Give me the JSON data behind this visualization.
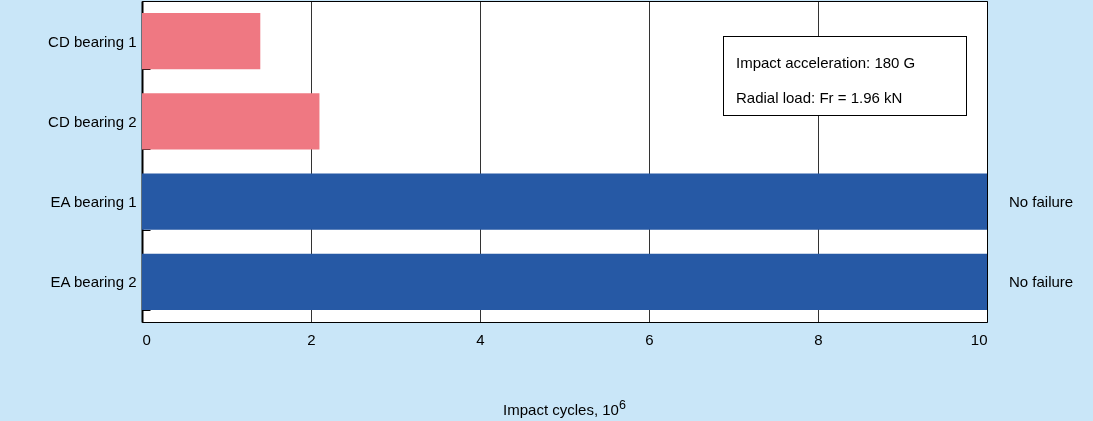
{
  "chart_data": {
    "type": "bar",
    "orientation": "horizontal",
    "xlabel": "Impact cycles, 10$^{6}$",
    "categories": [
      "CD bearing 1",
      "CD bearing 2",
      "EA bearing 1",
      "EA bearing 2"
    ],
    "values": [
      1.4,
      2.1,
      10,
      10
    ],
    "colors": [
      "#ef7882",
      "#ef7882",
      "#2659a5",
      "#2659a5"
    ],
    "value_labels": [
      null,
      null,
      "No failure",
      "No failure"
    ],
    "xlim": [
      0,
      10
    ],
    "xticks": [
      0,
      2,
      4,
      6,
      8,
      10
    ],
    "grid": "x",
    "annotations": [
      "Impact acceleration: 180 G",
      "Radial load: Fr = 1.96 kN"
    ]
  }
}
